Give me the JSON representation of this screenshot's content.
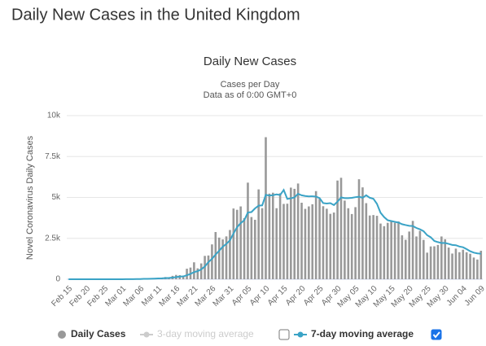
{
  "page_title": "Daily New Cases in the United Kingdom",
  "chart_data": {
    "type": "bar",
    "title": "Daily New Cases",
    "subtitle": [
      "Cases per Day",
      "Data as of 0:00 GMT+0"
    ],
    "y_label": "Novel Coronavirus Daily Cases",
    "ylim": [
      0,
      10000
    ],
    "yticks": [
      0,
      {
        "value": 2500,
        "label": "2.5k"
      },
      {
        "value": 5000,
        "label": "5k"
      },
      {
        "value": 7500,
        "label": "7.5k"
      },
      {
        "value": 10000,
        "label": "10k"
      }
    ],
    "grid": true,
    "categories": [
      "Feb 15",
      null,
      null,
      null,
      null,
      "Feb 20",
      null,
      null,
      null,
      null,
      "Feb 25",
      null,
      null,
      null,
      null,
      "Mar 01",
      null,
      null,
      null,
      null,
      "Mar 06",
      null,
      null,
      null,
      null,
      "Mar 11",
      null,
      null,
      null,
      null,
      "Mar 16",
      null,
      null,
      null,
      null,
      "Mar 21",
      null,
      null,
      null,
      null,
      "Mar 26",
      null,
      null,
      null,
      null,
      "Mar 31",
      null,
      null,
      null,
      null,
      "Apr 05",
      null,
      null,
      null,
      null,
      "Apr 10",
      null,
      null,
      null,
      null,
      "Apr 15",
      null,
      null,
      null,
      null,
      "Apr 20",
      null,
      null,
      null,
      null,
      "Apr 25",
      null,
      null,
      null,
      null,
      "Apr 30",
      null,
      null,
      null,
      null,
      "May 05",
      null,
      null,
      null,
      null,
      "May 10",
      null,
      null,
      null,
      null,
      "May 15",
      null,
      null,
      null,
      null,
      "May 20",
      null,
      null,
      null,
      null,
      "May 25",
      null,
      null,
      null,
      null,
      "May 30",
      null,
      null,
      null,
      null,
      "Jun 04",
      null,
      null,
      null,
      null,
      "Jun 09"
    ],
    "series": [
      {
        "name": "Daily Cases",
        "type": "bar",
        "color": "#999999",
        "values": [
          0,
          0,
          0,
          0,
          0,
          0,
          0,
          0,
          0,
          0,
          0,
          0,
          3,
          2,
          4,
          12,
          13,
          4,
          11,
          34,
          30,
          48,
          43,
          67,
          48,
          52,
          83,
          134,
          117,
          207,
          264,
          251,
          152,
          643,
          714,
          1035,
          665,
          967,
          1427,
          1452,
          2129,
          2885,
          2546,
          2433,
          2619,
          3009,
          4324,
          4244,
          4450,
          3735,
          5903,
          3802,
          3634,
          5491,
          4344,
          8681,
          5233,
          5288,
          4342,
          5252,
          4603,
          4617,
          5599,
          5525,
          5850,
          4676,
          4301,
          4451,
          4583,
          5386,
          4913,
          4463,
          4309,
          3996,
          4076,
          6032,
          6201,
          4806,
          4339,
          3985,
          4406,
          6111,
          5614,
          4649,
          3896,
          3923,
          3877,
          3403,
          3242,
          3446,
          3560,
          3450,
          3534,
          2684,
          2412,
          2915,
          3566,
          2615,
          2959,
          2405,
          1625,
          2004,
          2013,
          2095,
          2614,
          2445,
          1936,
          1570,
          1871,
          1653,
          1805,
          1650,
          1557,
          1326,
          1205,
          1741
        ]
      },
      {
        "name": "7-day moving average",
        "type": "line",
        "color": "#3aa3c6",
        "checked": true,
        "values": [
          0,
          0,
          0,
          0,
          0,
          0,
          0,
          0,
          0,
          0,
          0,
          0,
          0,
          1,
          1,
          3,
          5,
          5,
          7,
          11,
          15,
          22,
          26,
          34,
          40,
          47,
          53,
          66,
          78,
          101,
          132,
          161,
          172,
          245,
          326,
          432,
          497,
          600,
          782,
          1044,
          1248,
          1509,
          1739,
          1991,
          2156,
          2379,
          2798,
          3182,
          3426,
          3608,
          4078,
          4104,
          4328,
          4496,
          4513,
          5161,
          5110,
          5138,
          5184,
          5148,
          5455,
          4905,
          4948,
          5004,
          5221,
          5131,
          5088,
          5064,
          5068,
          5050,
          4959,
          4652,
          4629,
          4650,
          4532,
          4740,
          4999,
          4955,
          4959,
          4973,
          5016,
          5040,
          4980,
          5130,
          4980,
          4920,
          4607,
          4064,
          3800,
          3605,
          3558,
          3506,
          3466,
          3364,
          3311,
          3267,
          3254,
          3134,
          3052,
          2937,
          2693,
          2563,
          2341,
          2268,
          2216,
          2220,
          2162,
          2097,
          2078,
          1998,
          1956,
          1842,
          1713,
          1627,
          1580,
          1562
        ]
      }
    ],
    "hidden_series": [
      {
        "name": "3-day moving average",
        "color": "#cccccc",
        "checked": false
      }
    ]
  }
}
